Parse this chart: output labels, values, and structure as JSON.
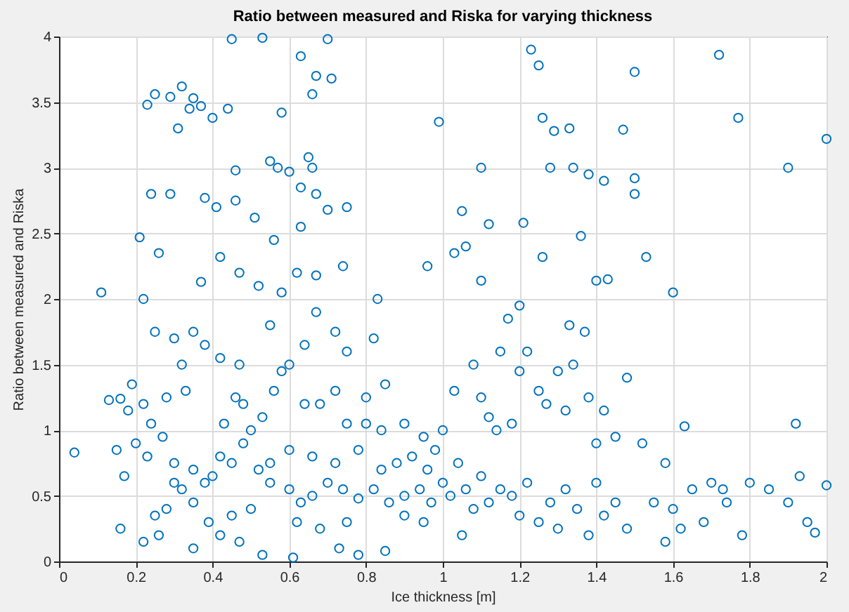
{
  "chart_data": {
    "type": "scatter",
    "title": "Ratio between measured and Riska for varying thickness",
    "xlabel": "Ice thickness [m]",
    "ylabel": "Ratio between measured and Riska",
    "xlim": [
      0,
      2
    ],
    "ylim": [
      0,
      4
    ],
    "xticks": [
      0,
      0.2,
      0.4,
      0.6,
      0.8,
      1,
      1.2,
      1.4,
      1.6,
      1.8,
      2
    ],
    "yticks": [
      0,
      0.5,
      1,
      1.5,
      2,
      2.5,
      3,
      3.5,
      4
    ],
    "grid": true,
    "marker": "circle",
    "legend": false,
    "series": [
      {
        "color": "#0072bd",
        "x": [
          0.45,
          0.53,
          0.7,
          0.63,
          0.67,
          0.71,
          0.66,
          0.58,
          0.32,
          0.35,
          0.37,
          0.34,
          0.44,
          0.4,
          0.25,
          0.29,
          0.23,
          0.31,
          0.55,
          0.57,
          0.65,
          0.66,
          0.46,
          0.6,
          0.24,
          0.29,
          0.38,
          0.46,
          0.41,
          0.51,
          0.63,
          0.67,
          0.75,
          0.7,
          0.63,
          0.56,
          0.21,
          0.26,
          0.42,
          0.52,
          0.62,
          0.67,
          0.74,
          0.47,
          0.37,
          0.11,
          0.22,
          0.58,
          0.83,
          1.23,
          1.25,
          1.5,
          1.72,
          0.99,
          1.26,
          1.33,
          1.29,
          1.47,
          1.77,
          2.0,
          1.1,
          1.28,
          1.34,
          1.38,
          1.42,
          1.5,
          1.5,
          1.9,
          1.05,
          1.12,
          1.21,
          1.36,
          1.03,
          1.06,
          1.26,
          1.53,
          1.4,
          1.43,
          1.6,
          1.1,
          0.96,
          0.04,
          0.13,
          0.16,
          0.19,
          0.18,
          0.22,
          0.2,
          0.15,
          0.17,
          0.16,
          0.25,
          0.3,
          0.35,
          0.38,
          0.32,
          0.33,
          0.28,
          0.24,
          0.27,
          0.23,
          0.3,
          0.35,
          0.38,
          0.4,
          0.42,
          0.45,
          0.48,
          0.5,
          0.43,
          0.46,
          0.48,
          0.53,
          0.56,
          0.58,
          0.6,
          0.64,
          0.68,
          0.72,
          0.75,
          0.8,
          0.84,
          0.9,
          0.95,
          0.98,
          0.55,
          0.6,
          0.63,
          0.66,
          0.7,
          0.74,
          0.78,
          0.82,
          0.86,
          0.9,
          0.94,
          0.97,
          0.5,
          0.45,
          0.39,
          0.35,
          0.32,
          0.3,
          0.28,
          0.25,
          0.22,
          0.26,
          0.35,
          0.42,
          0.47,
          0.53,
          0.61,
          0.73,
          0.78,
          0.85,
          0.62,
          0.68,
          0.75,
          0.55,
          0.52,
          0.6,
          0.66,
          0.72,
          0.78,
          0.84,
          0.88,
          0.92,
          0.96,
          0.8,
          0.85,
          0.75,
          0.72,
          0.67,
          0.82,
          0.64,
          0.55,
          0.47,
          0.42,
          1.0,
          1.02,
          1.04,
          1.06,
          1.08,
          1.1,
          1.12,
          1.15,
          1.18,
          1.2,
          1.22,
          1.25,
          1.28,
          1.3,
          1.32,
          1.35,
          1.38,
          1.4,
          1.42,
          1.45,
          1.48,
          1.0,
          1.03,
          1.08,
          1.1,
          1.12,
          1.15,
          1.18,
          1.2,
          1.22,
          1.25,
          1.27,
          1.3,
          1.32,
          1.34,
          1.37,
          1.38,
          1.4,
          1.42,
          1.45,
          1.48,
          1.52,
          1.58,
          1.63,
          1.65,
          1.7,
          1.73,
          1.74,
          1.8,
          1.85,
          1.9,
          1.92,
          1.93,
          1.95,
          1.97,
          2.0,
          1.55,
          1.6,
          1.68,
          1.78,
          1.58,
          1.62,
          1.2,
          1.17,
          1.33,
          1.14,
          0.9,
          0.95,
          1.05
        ],
        "values": [
          3.98,
          3.99,
          3.98,
          3.85,
          3.7,
          3.68,
          3.56,
          3.42,
          3.62,
          3.53,
          3.47,
          3.45,
          3.45,
          3.38,
          3.56,
          3.54,
          3.48,
          3.3,
          3.05,
          3.0,
          3.08,
          3.0,
          2.98,
          2.97,
          2.8,
          2.8,
          2.77,
          2.75,
          2.7,
          2.62,
          2.85,
          2.8,
          2.7,
          2.68,
          2.55,
          2.45,
          2.47,
          2.35,
          2.32,
          2.1,
          2.2,
          2.18,
          2.25,
          2.2,
          2.13,
          2.05,
          2.0,
          2.05,
          2.0,
          3.9,
          3.78,
          3.73,
          3.86,
          3.35,
          3.38,
          3.3,
          3.28,
          3.29,
          3.38,
          3.22,
          3.0,
          3.0,
          3.0,
          2.95,
          2.9,
          2.92,
          2.8,
          3.0,
          2.67,
          2.57,
          2.58,
          2.48,
          2.35,
          2.4,
          2.32,
          2.32,
          2.14,
          2.15,
          2.05,
          2.14,
          2.25,
          0.83,
          1.23,
          1.24,
          1.35,
          1.15,
          1.2,
          0.9,
          0.85,
          0.65,
          0.25,
          1.75,
          1.7,
          1.75,
          1.65,
          1.5,
          1.3,
          1.25,
          1.05,
          0.95,
          0.8,
          0.75,
          0.7,
          0.6,
          0.65,
          0.8,
          0.75,
          0.9,
          1.0,
          1.05,
          1.25,
          1.2,
          1.1,
          1.3,
          1.45,
          1.5,
          1.2,
          1.2,
          1.3,
          1.05,
          1.05,
          1.0,
          1.05,
          0.95,
          0.85,
          0.6,
          0.55,
          0.45,
          0.5,
          0.6,
          0.55,
          0.48,
          0.55,
          0.45,
          0.5,
          0.55,
          0.45,
          0.4,
          0.35,
          0.3,
          0.45,
          0.55,
          0.6,
          0.4,
          0.35,
          0.15,
          0.2,
          0.1,
          0.2,
          0.15,
          0.05,
          0.03,
          0.1,
          0.05,
          0.08,
          0.3,
          0.25,
          0.3,
          0.75,
          0.7,
          0.85,
          0.8,
          0.75,
          0.85,
          0.7,
          0.75,
          0.8,
          0.7,
          1.25,
          1.35,
          1.6,
          1.75,
          1.9,
          1.7,
          1.65,
          1.8,
          1.5,
          1.55,
          0.6,
          0.5,
          0.75,
          0.55,
          0.4,
          0.65,
          0.45,
          0.55,
          0.5,
          0.35,
          0.6,
          0.3,
          0.45,
          0.25,
          0.55,
          0.4,
          0.2,
          0.6,
          0.35,
          0.45,
          0.25,
          1.0,
          1.3,
          1.5,
          1.25,
          1.1,
          1.6,
          1.05,
          1.45,
          1.6,
          1.3,
          1.2,
          1.45,
          1.15,
          1.5,
          1.75,
          1.25,
          0.9,
          1.15,
          0.95,
          1.4,
          0.9,
          0.75,
          1.03,
          0.55,
          0.6,
          0.55,
          0.45,
          0.6,
          0.55,
          0.45,
          1.05,
          0.65,
          0.3,
          0.22,
          0.58,
          0.45,
          0.4,
          0.3,
          0.2,
          0.15,
          0.25,
          1.95,
          1.85,
          1.8,
          1.0,
          0.35,
          0.3,
          0.2
        ]
      }
    ]
  }
}
